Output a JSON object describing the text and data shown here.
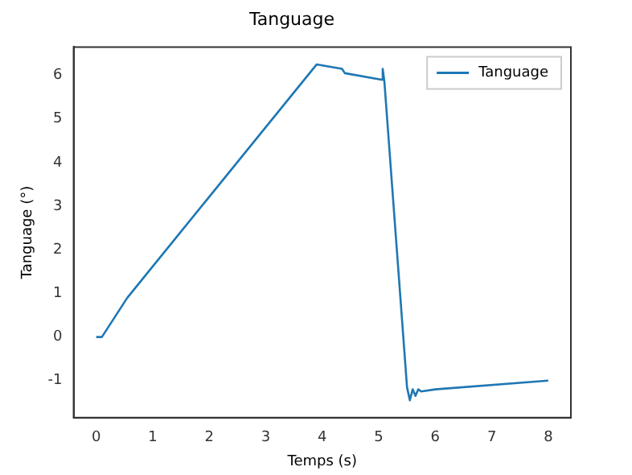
{
  "chart_data": {
    "type": "line",
    "title": "Tanguage",
    "xlabel": "Temps (s)",
    "ylabel": "Tanguage (°)",
    "xlim": [
      -0.4,
      8.4
    ],
    "xticks": [
      0,
      1,
      2,
      3,
      4,
      5,
      6,
      7,
      8
    ],
    "ylim": [
      -1.85,
      6.65
    ],
    "yticks": [
      -1,
      0,
      1,
      2,
      3,
      4,
      5,
      6
    ],
    "grid": false,
    "legend": "top right",
    "series": [
      {
        "name": "Tanguage",
        "color": "#1f77b4",
        "x": [
          0,
          0.1,
          0.55,
          3.9,
          4.35,
          4.4,
          5.05,
          5.07,
          5.1,
          5.5,
          5.55,
          5.6,
          5.65,
          5.7,
          5.75,
          6,
          8
        ],
        "values": [
          0,
          0,
          0.9,
          6.25,
          6.15,
          6.05,
          5.9,
          6.15,
          5.85,
          -1.15,
          -1.45,
          -1.2,
          -1.35,
          -1.2,
          -1.25,
          -1.2,
          -1.0
        ]
      }
    ]
  }
}
